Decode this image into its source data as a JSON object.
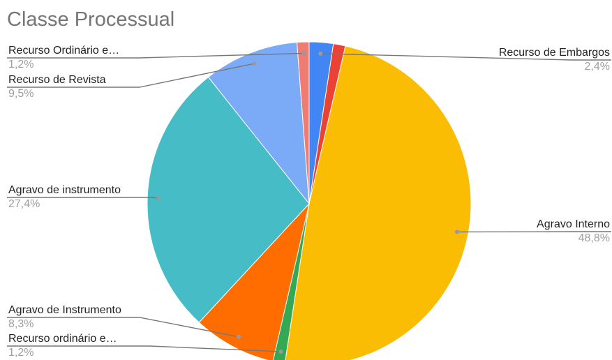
{
  "chart_data": {
    "type": "pie",
    "title": "Classe Processual",
    "slices": [
      {
        "label": "Recurso de Embargos",
        "percent_label": "2,4%",
        "value": 2.4,
        "color": "#4285f4"
      },
      {
        "label": "",
        "percent_label": "",
        "value": 1.2,
        "color": "#ea4335"
      },
      {
        "label": "Agravo Interno",
        "percent_label": "48,8%",
        "value": 48.8,
        "color": "#fbbc04"
      },
      {
        "label": "Recurso ordinário e…",
        "percent_label": "1,2%",
        "value": 1.2,
        "color": "#34a853"
      },
      {
        "label": "Agravo de Instrumento",
        "percent_label": "8,3%",
        "value": 8.3,
        "color": "#ff6d01"
      },
      {
        "label": "Agravo de instrumento",
        "percent_label": "27,4%",
        "value": 27.4,
        "color": "#46bdc6"
      },
      {
        "label": "Recurso de Revista",
        "percent_label": "9,5%",
        "value": 9.5,
        "color": "#7baaf7"
      },
      {
        "label": "Recurso Ordinário e…",
        "percent_label": "1,2%",
        "value": 1.2,
        "color": "#f07b72"
      }
    ],
    "legend": "none",
    "start_angle": "top",
    "direction": "clockwise"
  }
}
